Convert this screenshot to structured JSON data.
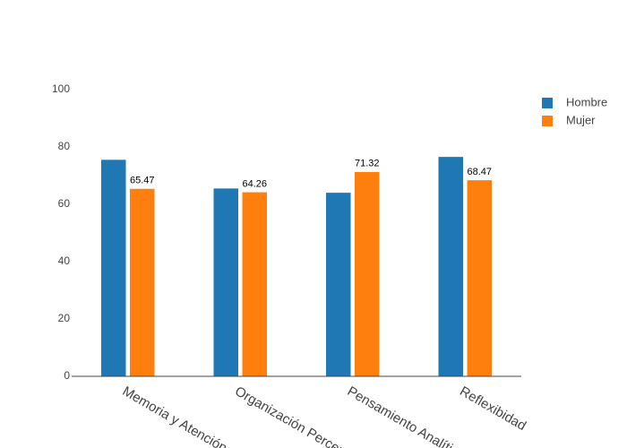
{
  "chart_data": {
    "type": "bar",
    "categories": [
      "Memoria y Atención",
      "Organización Perceptiva",
      "Pensamiento Analítico",
      "Reflexibidad"
    ],
    "series": [
      {
        "name": "Hombre",
        "color": "#1f77b4",
        "values": [
          75.6,
          65.6,
          64.1,
          76.6
        ]
      },
      {
        "name": "Mujer",
        "color": "#ff7f0e",
        "values": [
          65.47,
          64.26,
          71.32,
          68.47
        ],
        "show_labels": true
      }
    ],
    "ylim": [
      0,
      100
    ],
    "yticks": [
      0,
      20,
      40,
      60,
      80,
      100
    ],
    "grid": false,
    "legend": "top-right"
  }
}
